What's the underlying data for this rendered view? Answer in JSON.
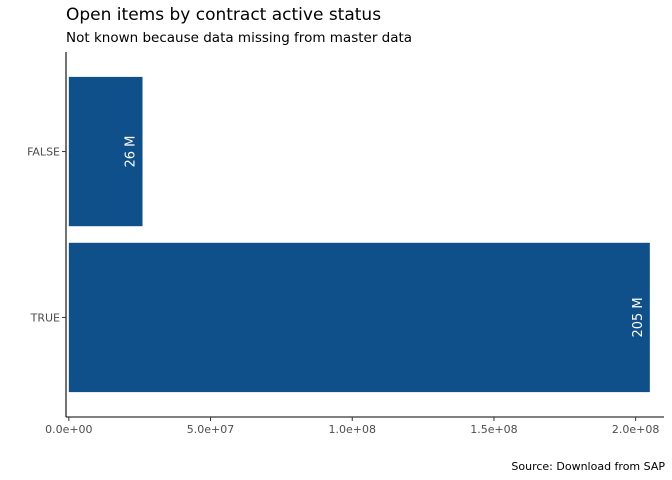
{
  "chart_data": {
    "type": "bar",
    "orientation": "horizontal",
    "title": "Open items by contract active status",
    "subtitle": "Not known because data missing from master data",
    "caption": "Source: Download from SAP",
    "xlabel": "",
    "ylabel": "",
    "categories": [
      "FALSE",
      "TRUE"
    ],
    "values": [
      26000000,
      205000000
    ],
    "data_labels": [
      "26 M",
      "205 M"
    ],
    "xlim": [
      -1000000,
      210000000
    ],
    "x_ticks": [
      0,
      50000000,
      100000000,
      150000000,
      200000000
    ],
    "x_tick_labels": [
      "0.0e+00",
      "5.0e+07",
      "1.0e+08",
      "1.5e+08",
      "2.0e+08"
    ],
    "grid": false,
    "bar_color": "#0f4f8a"
  }
}
